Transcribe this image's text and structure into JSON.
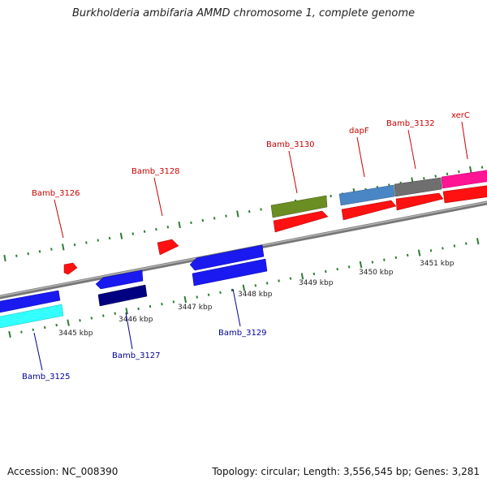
{
  "title": "Burkholderia ambifaria AMMD chromosome 1, complete genome",
  "footer": {
    "accession": "Accession: NC_008390",
    "summary": "Topology: circular; Length: 3,556,545 bp; Genes: 3,281"
  },
  "colors": {
    "backbone": "#8a8a8a",
    "tick_major": "#2e7d32",
    "tick_minor": "#2e7d32",
    "label_top": "#cc0000",
    "label_bottom": "#000099",
    "gene_red": "#ff1111",
    "gene_blue": "#1a1af0",
    "gene_cyan": "#33ffff",
    "gene_navy": "#000080",
    "gene_olive": "#6b8e23",
    "gene_steel": "#4a86c5",
    "gene_gray": "#6f6f6f",
    "gene_magenta": "#ff1493"
  },
  "kbp_labels": [
    "3445 kbp",
    "3446 kbp",
    "3447 kbp",
    "3448 kbp",
    "3449 kbp",
    "3450 kbp",
    "3451 kbp"
  ],
  "gene_labels_top": [
    "Bamb_3126",
    "Bamb_3128",
    "Bamb_3130",
    "dapF",
    "Bamb_3132",
    "xerC"
  ],
  "gene_labels_bottom": [
    "Bamb_3125",
    "Bamb_3127",
    "Bamb_3129"
  ]
}
